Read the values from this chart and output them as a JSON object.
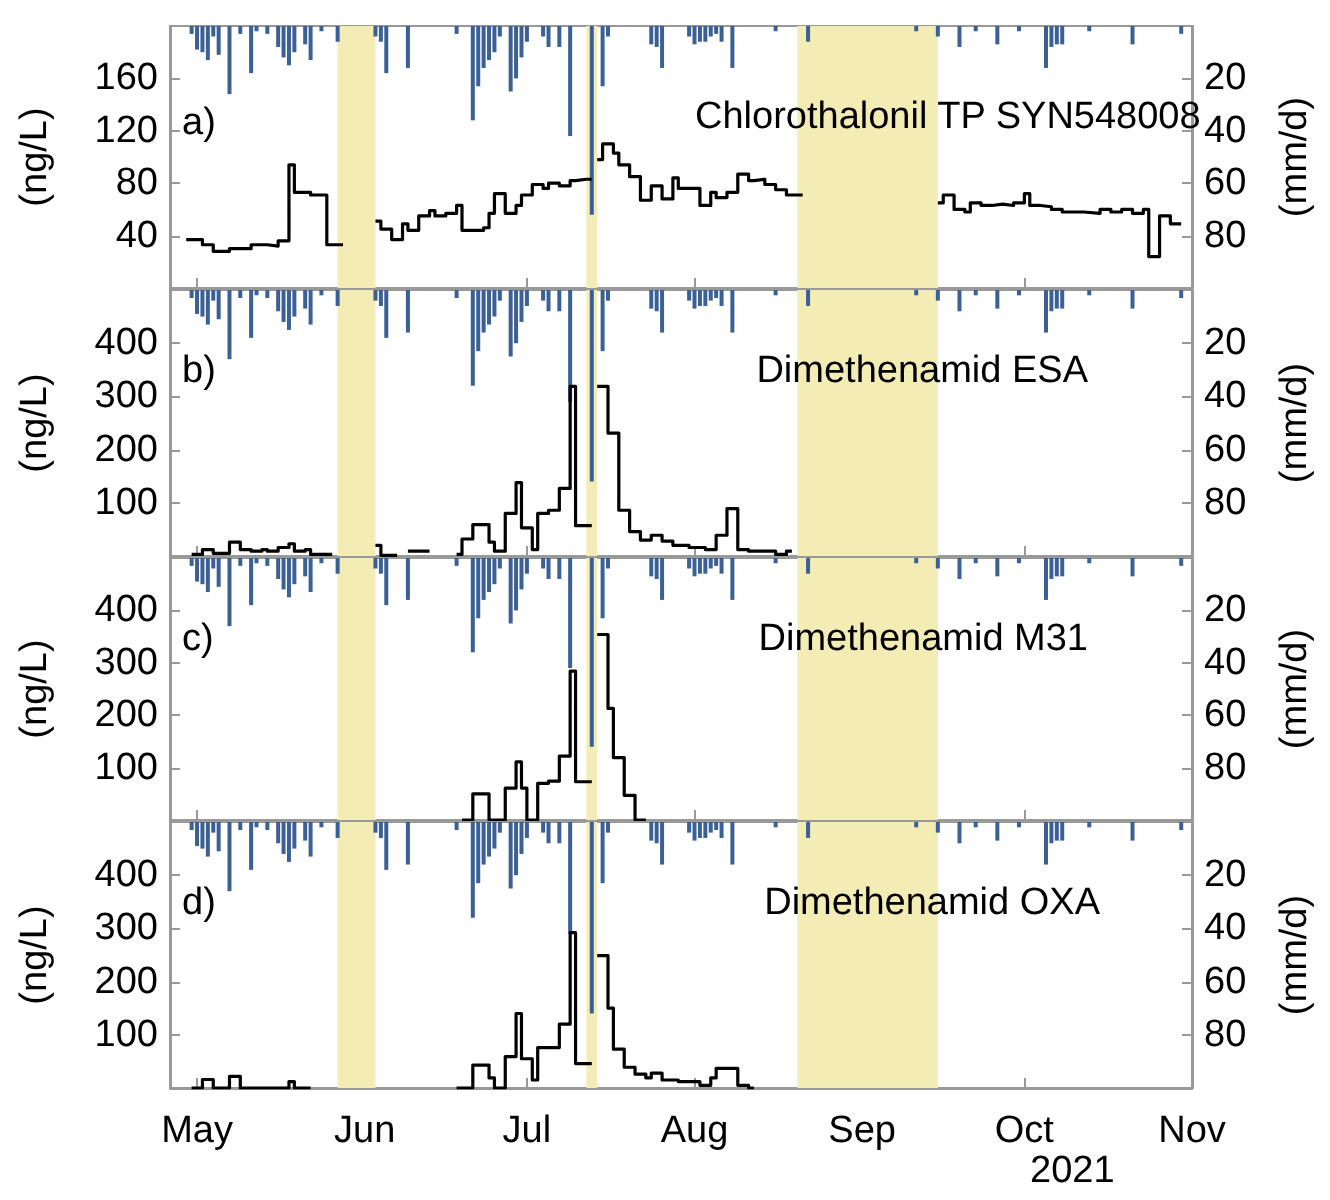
{
  "chart_data": [
    {
      "type": "line",
      "title": "Chlorothalonil TP SYN548008",
      "ylabel": "(ng/L)",
      "y2label": "(mm/d)",
      "annotations": [
        "a)"
      ],
      "tick_labels": "y",
      "xlim": [
        "2021-04-26",
        "2021-11-01"
      ],
      "xticks": [
        {
          "value": "2021-05-01",
          "label": null
        },
        {
          "value": "2021-06-01",
          "label": null
        },
        {
          "value": "2021-07-01",
          "label": null
        },
        {
          "value": "2021-08-01",
          "label": null
        },
        {
          "value": "2021-09-01",
          "label": null
        },
        {
          "value": "2021-10-01",
          "label": null
        },
        {
          "value": "2021-11-01",
          "label": null
        }
      ],
      "ylim": [
        0,
        200
      ],
      "yticks": [
        40,
        80,
        120,
        160
      ],
      "y2lim": [
        100,
        0
      ],
      "y2ticks": [
        20,
        40,
        60,
        80
      ],
      "bands": [
        {
          "axis": "x",
          "from": "2021-05-27",
          "to": "2021-06-03",
          "color": "#f3ecb4"
        },
        {
          "axis": "x",
          "from": "2021-07-12",
          "to": "2021-07-14",
          "color": "#f3ecb4"
        },
        {
          "axis": "x",
          "from": "2021-08-20",
          "to": "2021-09-15",
          "color": "#f3ecb4"
        }
      ],
      "series": [
        {
          "type": "step",
          "color": "#000000",
          "x": [
            "2021-04-29",
            "2021-05-02",
            "2021-05-04",
            "2021-05-07",
            "2021-05-11",
            "2021-05-14",
            "2021-05-16",
            "2021-05-18",
            "2021-05-19",
            "2021-05-22",
            "2021-05-25",
            "2021-05-27",
            "2021-05-28",
            "2021-06-03",
            "2021-06-04",
            "2021-06-06",
            "2021-06-08",
            "2021-06-09",
            "2021-06-11",
            "2021-06-13",
            "2021-06-14",
            "2021-06-16",
            "2021-06-18",
            "2021-06-19",
            "2021-06-23",
            "2021-06-24",
            "2021-06-25",
            "2021-06-27",
            "2021-06-29",
            "2021-06-30",
            "2021-07-02",
            "2021-07-04",
            "2021-07-05",
            "2021-07-07",
            "2021-07-09",
            "2021-07-10",
            "2021-07-12",
            "2021-07-13",
            "2021-07-14",
            "2021-07-15",
            "2021-07-17",
            "2021-07-18",
            "2021-07-20",
            "2021-07-22",
            "2021-07-24",
            "2021-07-26",
            "2021-07-28",
            "2021-07-29",
            "2021-08-02",
            "2021-08-04",
            "2021-08-05",
            "2021-08-07",
            "2021-08-09",
            "2021-08-11",
            "2021-08-12",
            "2021-08-14",
            "2021-08-16",
            "2021-08-18",
            "2021-08-20",
            "2021-08-21",
            "2021-09-15",
            "2021-09-16",
            "2021-09-18",
            "2021-09-20",
            "2021-09-21",
            "2021-09-23",
            "2021-09-25",
            "2021-09-27",
            "2021-09-29",
            "2021-10-01",
            "2021-10-02",
            "2021-10-04",
            "2021-10-06",
            "2021-10-08",
            "2021-10-12",
            "2021-10-15",
            "2021-10-17",
            "2021-10-19",
            "2021-10-21",
            "2021-10-23",
            "2021-10-24",
            "2021-10-26",
            "2021-10-28",
            "2021-10-30"
          ],
          "values": [
            37,
            33,
            28,
            30,
            33,
            32,
            36,
            94,
            73,
            71,
            33,
            33,
            null,
            51,
            45,
            37,
            49,
            44,
            55,
            59,
            55,
            57,
            63,
            44,
            46,
            57,
            72,
            57,
            63,
            71,
            79,
            76,
            80,
            78,
            82,
            83,
            83,
            null,
            98,
            110,
            103,
            94,
            85,
            67,
            78,
            68,
            84,
            76,
            63,
            73,
            69,
            73,
            87,
            82,
            83,
            79,
            75,
            71,
            71,
            null,
            65,
            71,
            60,
            58,
            65,
            63,
            64,
            63,
            65,
            72,
            63,
            62,
            60,
            58,
            57,
            60,
            58,
            60,
            57,
            60,
            24,
            55,
            49,
            49
          ]
        },
        {
          "type": "bar",
          "axis": "y2",
          "color": "#3a6096",
          "x": [
            "2021-04-30",
            "2021-05-01",
            "2021-05-02",
            "2021-05-03",
            "2021-05-04",
            "2021-05-05",
            "2021-05-07",
            "2021-05-09",
            "2021-05-11",
            "2021-05-12",
            "2021-05-14",
            "2021-05-16",
            "2021-05-17",
            "2021-05-18",
            "2021-05-19",
            "2021-05-21",
            "2021-05-22",
            "2021-05-24",
            "2021-05-27",
            "2021-06-03",
            "2021-06-04",
            "2021-06-05",
            "2021-06-09",
            "2021-06-18",
            "2021-06-21",
            "2021-06-22",
            "2021-06-23",
            "2021-06-24",
            "2021-06-25",
            "2021-06-26",
            "2021-06-28",
            "2021-06-29",
            "2021-06-30",
            "2021-07-01",
            "2021-07-04",
            "2021-07-05",
            "2021-07-07",
            "2021-07-09",
            "2021-07-13",
            "2021-07-15",
            "2021-07-16",
            "2021-07-24",
            "2021-07-25",
            "2021-07-26",
            "2021-07-31",
            "2021-08-01",
            "2021-08-02",
            "2021-08-03",
            "2021-08-04",
            "2021-08-05",
            "2021-08-06",
            "2021-08-08",
            "2021-08-16",
            "2021-08-22",
            "2021-09-11",
            "2021-09-15",
            "2021-09-19",
            "2021-09-22",
            "2021-09-26",
            "2021-09-30",
            "2021-10-05",
            "2021-10-06",
            "2021-10-07",
            "2021-10-08",
            "2021-10-13",
            "2021-10-21",
            "2021-10-30"
          ],
          "values": [
            3,
            9,
            10,
            13,
            4,
            11,
            26,
            3,
            18,
            2,
            3,
            8,
            12,
            15,
            10,
            7,
            13,
            2,
            6,
            4,
            6,
            18,
            16,
            3,
            36,
            23,
            16,
            13,
            10,
            4,
            25,
            20,
            12,
            6,
            4,
            8,
            8,
            42,
            72,
            23,
            4,
            7,
            8,
            16,
            4,
            7,
            6,
            6,
            4,
            3,
            6,
            16,
            2,
            6,
            2,
            4,
            8,
            2,
            7,
            2,
            16,
            8,
            7,
            7,
            2,
            7,
            3
          ]
        }
      ]
    },
    {
      "type": "line",
      "title": "Dimethenamid ESA",
      "ylabel": "(ng/L)",
      "y2label": "(mm/d)",
      "annotations": [
        "b)"
      ],
      "tick_labels": "y",
      "xlim": [
        "2021-04-26",
        "2021-11-01"
      ],
      "xticks": [
        {
          "value": "2021-05-01",
          "label": null
        },
        {
          "value": "2021-06-01",
          "label": null
        },
        {
          "value": "2021-07-01",
          "label": null
        },
        {
          "value": "2021-08-01",
          "label": null
        },
        {
          "value": "2021-09-01",
          "label": null
        },
        {
          "value": "2021-10-01",
          "label": null
        },
        {
          "value": "2021-11-01",
          "label": null
        }
      ],
      "ylim": [
        0,
        500
      ],
      "yticks": [
        100,
        200,
        300,
        400
      ],
      "y2lim": [
        100,
        0
      ],
      "y2ticks": [
        20,
        40,
        60,
        80
      ],
      "bands": [
        {
          "axis": "x",
          "from": "2021-05-27",
          "to": "2021-06-03",
          "color": "#f3ecb4"
        },
        {
          "axis": "x",
          "from": "2021-07-12",
          "to": "2021-07-14",
          "color": "#f3ecb4"
        },
        {
          "axis": "x",
          "from": "2021-08-20",
          "to": "2021-09-15",
          "color": "#f3ecb4"
        }
      ],
      "series": [
        {
          "type": "step",
          "color": "#000000",
          "x": [
            "2021-04-30",
            "2021-05-02",
            "2021-05-04",
            "2021-05-07",
            "2021-05-09",
            "2021-05-11",
            "2021-05-13",
            "2021-05-14",
            "2021-05-16",
            "2021-05-18",
            "2021-05-19",
            "2021-05-21",
            "2021-05-22",
            "2021-05-25",
            "2021-05-26",
            "2021-06-03",
            "2021-06-04",
            "2021-06-06",
            "2021-06-07",
            "2021-06-09",
            "2021-06-12",
            "2021-06-13",
            "2021-06-18",
            "2021-06-19",
            "2021-06-21",
            "2021-06-24",
            "2021-06-25",
            "2021-06-27",
            "2021-06-29",
            "2021-06-30",
            "2021-07-02",
            "2021-07-03",
            "2021-07-05",
            "2021-07-07",
            "2021-07-09",
            "2021-07-10",
            "2021-07-12",
            "2021-07-13",
            "2021-07-14",
            "2021-07-16",
            "2021-07-18",
            "2021-07-20",
            "2021-07-22",
            "2021-07-24",
            "2021-07-26",
            "2021-07-28",
            "2021-07-31",
            "2021-08-03",
            "2021-08-05",
            "2021-08-07",
            "2021-08-09",
            "2021-08-11",
            "2021-08-16",
            "2021-08-18",
            "2021-08-19"
          ],
          "values": [
            3,
            12,
            5,
            26,
            12,
            9,
            12,
            9,
            16,
            23,
            9,
            12,
            3,
            3,
            null,
            20,
            1,
            1,
            null,
            9,
            9,
            null,
            3,
            32,
            59,
            26,
            9,
            80,
            138,
            53,
            12,
            80,
            86,
            127,
            319,
            57,
            57,
            null,
            319,
            231,
            86,
            46,
            30,
            39,
            28,
            20,
            16,
            12,
            39,
            89,
            12,
            9,
            3,
            9,
            9
          ]
        },
        {
          "type": "bar",
          "axis": "y2",
          "color": "#3a6096",
          "x": [
            "2021-04-30",
            "2021-05-01",
            "2021-05-02",
            "2021-05-03",
            "2021-05-04",
            "2021-05-05",
            "2021-05-07",
            "2021-05-09",
            "2021-05-11",
            "2021-05-12",
            "2021-05-14",
            "2021-05-16",
            "2021-05-17",
            "2021-05-18",
            "2021-05-19",
            "2021-05-21",
            "2021-05-22",
            "2021-05-24",
            "2021-05-27",
            "2021-06-03",
            "2021-06-04",
            "2021-06-05",
            "2021-06-09",
            "2021-06-18",
            "2021-06-21",
            "2021-06-22",
            "2021-06-23",
            "2021-06-24",
            "2021-06-25",
            "2021-06-26",
            "2021-06-28",
            "2021-06-29",
            "2021-06-30",
            "2021-07-01",
            "2021-07-04",
            "2021-07-05",
            "2021-07-07",
            "2021-07-09",
            "2021-07-13",
            "2021-07-15",
            "2021-07-16",
            "2021-07-24",
            "2021-07-25",
            "2021-07-26",
            "2021-07-31",
            "2021-08-01",
            "2021-08-02",
            "2021-08-03",
            "2021-08-04",
            "2021-08-05",
            "2021-08-06",
            "2021-08-08",
            "2021-08-16",
            "2021-08-22",
            "2021-09-11",
            "2021-09-15",
            "2021-09-19",
            "2021-09-22",
            "2021-09-26",
            "2021-09-30",
            "2021-10-05",
            "2021-10-06",
            "2021-10-07",
            "2021-10-08",
            "2021-10-13",
            "2021-10-21",
            "2021-10-30"
          ],
          "values": [
            3,
            9,
            10,
            13,
            4,
            11,
            26,
            3,
            18,
            2,
            3,
            8,
            12,
            15,
            10,
            7,
            13,
            2,
            6,
            4,
            6,
            18,
            16,
            3,
            36,
            23,
            16,
            13,
            10,
            4,
            25,
            20,
            12,
            6,
            4,
            8,
            8,
            42,
            72,
            23,
            4,
            7,
            8,
            16,
            4,
            7,
            6,
            6,
            4,
            3,
            6,
            16,
            2,
            6,
            2,
            4,
            8,
            2,
            7,
            2,
            16,
            8,
            7,
            7,
            2,
            7,
            3
          ]
        }
      ]
    },
    {
      "type": "line",
      "title": "Dimethenamid M31",
      "ylabel": "(ng/L)",
      "y2label": "(mm/d)",
      "annotations": [
        "c)"
      ],
      "tick_labels": "y",
      "xlim": [
        "2021-04-26",
        "2021-11-01"
      ],
      "xticks": [
        {
          "value": "2021-05-01",
          "label": null
        },
        {
          "value": "2021-06-01",
          "label": null
        },
        {
          "value": "2021-07-01",
          "label": null
        },
        {
          "value": "2021-08-01",
          "label": null
        },
        {
          "value": "2021-09-01",
          "label": null
        },
        {
          "value": "2021-10-01",
          "label": null
        },
        {
          "value": "2021-11-01",
          "label": null
        }
      ],
      "ylim": [
        0,
        500
      ],
      "yticks": [
        100,
        200,
        300,
        400
      ],
      "y2lim": [
        100,
        0
      ],
      "y2ticks": [
        20,
        40,
        60,
        80
      ],
      "bands": [
        {
          "axis": "x",
          "from": "2021-05-27",
          "to": "2021-06-03",
          "color": "#f3ecb4"
        },
        {
          "axis": "x",
          "from": "2021-07-12",
          "to": "2021-07-14",
          "color": "#f3ecb4"
        },
        {
          "axis": "x",
          "from": "2021-08-20",
          "to": "2021-09-15",
          "color": "#f3ecb4"
        }
      ],
      "series": [
        {
          "type": "step",
          "color": "#000000",
          "x": [
            "2021-06-19",
            "2021-06-21",
            "2021-06-24",
            "2021-06-27",
            "2021-06-29",
            "2021-06-30",
            "2021-07-01",
            "2021-07-03",
            "2021-07-05",
            "2021-07-07",
            "2021-07-09",
            "2021-07-10",
            "2021-07-12",
            "2021-07-13",
            "2021-07-14",
            "2021-07-16",
            "2021-07-17",
            "2021-07-19",
            "2021-07-21",
            "2021-07-23"
          ],
          "values": [
            0,
            50,
            0,
            61,
            111,
            61,
            0,
            70,
            74,
            122,
            284,
            73,
            73,
            null,
            354,
            213,
            119,
            47,
            0,
            0
          ]
        },
        {
          "type": "bar",
          "axis": "y2",
          "color": "#3a6096",
          "x": [
            "2021-04-30",
            "2021-05-01",
            "2021-05-02",
            "2021-05-03",
            "2021-05-04",
            "2021-05-05",
            "2021-05-07",
            "2021-05-09",
            "2021-05-11",
            "2021-05-12",
            "2021-05-14",
            "2021-05-16",
            "2021-05-17",
            "2021-05-18",
            "2021-05-19",
            "2021-05-21",
            "2021-05-22",
            "2021-05-24",
            "2021-05-27",
            "2021-06-03",
            "2021-06-04",
            "2021-06-05",
            "2021-06-09",
            "2021-06-18",
            "2021-06-21",
            "2021-06-22",
            "2021-06-23",
            "2021-06-24",
            "2021-06-25",
            "2021-06-26",
            "2021-06-28",
            "2021-06-29",
            "2021-06-30",
            "2021-07-01",
            "2021-07-04",
            "2021-07-05",
            "2021-07-07",
            "2021-07-09",
            "2021-07-13",
            "2021-07-15",
            "2021-07-16",
            "2021-07-24",
            "2021-07-25",
            "2021-07-26",
            "2021-07-31",
            "2021-08-01",
            "2021-08-02",
            "2021-08-03",
            "2021-08-04",
            "2021-08-05",
            "2021-08-06",
            "2021-08-08",
            "2021-08-16",
            "2021-08-22",
            "2021-09-11",
            "2021-09-15",
            "2021-09-19",
            "2021-09-22",
            "2021-09-26",
            "2021-09-30",
            "2021-10-05",
            "2021-10-06",
            "2021-10-07",
            "2021-10-08",
            "2021-10-13",
            "2021-10-21",
            "2021-10-30"
          ],
          "values": [
            3,
            9,
            10,
            13,
            4,
            11,
            26,
            3,
            18,
            2,
            3,
            8,
            12,
            15,
            10,
            7,
            13,
            2,
            6,
            4,
            6,
            18,
            16,
            3,
            36,
            23,
            16,
            13,
            10,
            4,
            25,
            20,
            12,
            6,
            4,
            8,
            8,
            42,
            72,
            23,
            4,
            7,
            8,
            16,
            4,
            7,
            6,
            6,
            4,
            3,
            6,
            16,
            2,
            6,
            2,
            4,
            8,
            2,
            7,
            2,
            16,
            8,
            7,
            7,
            2,
            7,
            3
          ]
        }
      ]
    },
    {
      "type": "line",
      "title": "Dimethenamid OXA",
      "ylabel": "(ng/L)",
      "y2label": "(mm/d)",
      "annotations": [
        "d)",
        "2021"
      ],
      "xlim": [
        "2021-04-26",
        "2021-11-01"
      ],
      "xticks": [
        {
          "value": "2021-05-01",
          "label": "May"
        },
        {
          "value": "2021-06-01",
          "label": "Jun"
        },
        {
          "value": "2021-07-01",
          "label": "Jul"
        },
        {
          "value": "2021-08-01",
          "label": "Aug"
        },
        {
          "value": "2021-09-01",
          "label": "Sep"
        },
        {
          "value": "2021-10-01",
          "label": "Oct"
        },
        {
          "value": "2021-11-01",
          "label": "Nov"
        }
      ],
      "ylim": [
        0,
        500
      ],
      "yticks": [
        100,
        200,
        300,
        400
      ],
      "y2lim": [
        100,
        0
      ],
      "y2ticks": [
        20,
        40,
        60,
        80
      ],
      "bands": [
        {
          "axis": "x",
          "from": "2021-05-27",
          "to": "2021-06-03",
          "color": "#f3ecb4"
        },
        {
          "axis": "x",
          "from": "2021-07-12",
          "to": "2021-07-14",
          "color": "#f3ecb4"
        },
        {
          "axis": "x",
          "from": "2021-08-20",
          "to": "2021-09-15",
          "color": "#f3ecb4"
        }
      ],
      "series": [
        {
          "type": "step",
          "color": "#000000",
          "x": [
            "2021-04-30",
            "2021-05-02",
            "2021-05-04",
            "2021-05-07",
            "2021-05-09",
            "2021-05-18",
            "2021-05-19",
            "2021-05-21",
            "2021-05-22",
            "2021-06-18",
            "2021-06-21",
            "2021-06-24",
            "2021-06-25",
            "2021-06-27",
            "2021-06-29",
            "2021-06-30",
            "2021-07-02",
            "2021-07-03",
            "2021-07-07",
            "2021-07-09",
            "2021-07-10",
            "2021-07-12",
            "2021-07-13",
            "2021-07-14",
            "2021-07-16",
            "2021-07-17",
            "2021-07-19",
            "2021-07-21",
            "2021-07-23",
            "2021-07-24",
            "2021-07-26",
            "2021-07-29",
            "2021-08-02",
            "2021-08-04",
            "2021-08-05",
            "2021-08-09",
            "2021-08-11",
            "2021-08-12"
          ],
          "values": [
            0,
            16,
            0,
            22,
            0,
            12,
            0,
            0,
            null,
            0,
            43,
            19,
            0,
            59,
            140,
            55,
            15,
            76,
            120,
            292,
            46,
            46,
            null,
            249,
            150,
            73,
            39,
            26,
            19,
            28,
            15,
            12,
            5,
            19,
            37,
            5,
            0,
            0
          ]
        },
        {
          "type": "bar",
          "axis": "y2",
          "color": "#3a6096",
          "x": [
            "2021-04-30",
            "2021-05-01",
            "2021-05-02",
            "2021-05-03",
            "2021-05-04",
            "2021-05-05",
            "2021-05-07",
            "2021-05-09",
            "2021-05-11",
            "2021-05-12",
            "2021-05-14",
            "2021-05-16",
            "2021-05-17",
            "2021-05-18",
            "2021-05-19",
            "2021-05-21",
            "2021-05-22",
            "2021-05-24",
            "2021-05-27",
            "2021-06-03",
            "2021-06-04",
            "2021-06-05",
            "2021-06-09",
            "2021-06-18",
            "2021-06-21",
            "2021-06-22",
            "2021-06-23",
            "2021-06-24",
            "2021-06-25",
            "2021-06-26",
            "2021-06-28",
            "2021-06-29",
            "2021-06-30",
            "2021-07-01",
            "2021-07-04",
            "2021-07-05",
            "2021-07-07",
            "2021-07-09",
            "2021-07-13",
            "2021-07-15",
            "2021-07-16",
            "2021-07-24",
            "2021-07-25",
            "2021-07-26",
            "2021-07-31",
            "2021-08-01",
            "2021-08-02",
            "2021-08-03",
            "2021-08-04",
            "2021-08-05",
            "2021-08-06",
            "2021-08-08",
            "2021-08-16",
            "2021-08-22",
            "2021-09-11",
            "2021-09-15",
            "2021-09-19",
            "2021-09-22",
            "2021-09-26",
            "2021-09-30",
            "2021-10-05",
            "2021-10-06",
            "2021-10-07",
            "2021-10-08",
            "2021-10-13",
            "2021-10-21",
            "2021-10-30"
          ],
          "values": [
            3,
            9,
            10,
            13,
            4,
            11,
            26,
            3,
            18,
            2,
            3,
            8,
            12,
            15,
            10,
            7,
            13,
            2,
            6,
            4,
            6,
            18,
            16,
            3,
            36,
            23,
            16,
            13,
            10,
            4,
            25,
            20,
            12,
            6,
            4,
            8,
            8,
            42,
            72,
            23,
            4,
            7,
            8,
            16,
            4,
            7,
            6,
            6,
            4,
            3,
            6,
            16,
            2,
            6,
            2,
            4,
            8,
            2,
            7,
            2,
            16,
            8,
            7,
            7,
            2,
            7,
            3
          ]
        }
      ]
    }
  ]
}
